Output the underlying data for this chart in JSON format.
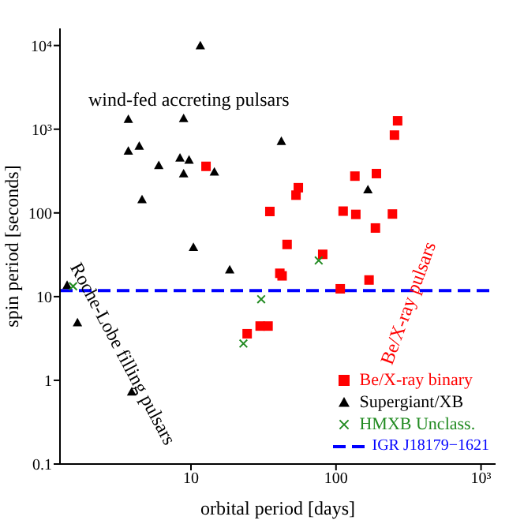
{
  "chart_data": {
    "type": "scatter",
    "xlabel": "orbital period [days]",
    "ylabel": "spin period [seconds]",
    "log": "xy",
    "xlim": [
      1.25,
      1260
    ],
    "ylim": [
      0.1,
      16000
    ],
    "xticks": [
      10,
      100,
      {
        "value": 1000,
        "label": "10³"
      }
    ],
    "yticks": [
      0.1,
      1,
      10,
      100,
      {
        "value": 1000,
        "label": "10³"
      },
      {
        "value": 10000,
        "label": "10⁴"
      }
    ],
    "grid": false,
    "legend": "bottom right",
    "series": [
      {
        "name": "Be/X-ray binary",
        "color": "#ff0000",
        "marker": "square",
        "x": [
          12.7,
          35,
          55,
          53,
          46,
          81,
          135,
          190,
          112,
          137,
          187,
          245,
          253,
          266,
          41,
          42.5,
          107,
          169,
          24.4,
          30,
          34
        ],
        "values": [
          360,
          104,
          200,
          163,
          42,
          32,
          275,
          295,
          105,
          96,
          66,
          97,
          850,
          1260,
          19,
          17.7,
          12.4,
          15.8,
          3.6,
          4.45,
          4.45
        ]
      },
      {
        "name": "Supergiant/XB",
        "color": "#000000",
        "marker": "triangle",
        "x": [
          11.6,
          3.7,
          8.9,
          3.7,
          4.4,
          6.0,
          8.4,
          9.7,
          8.9,
          14.5,
          4.6,
          42,
          166,
          10.4,
          1.4,
          1.65,
          3.9,
          18.5
        ],
        "values": [
          10000,
          1320,
          1350,
          550,
          630,
          370,
          455,
          430,
          295,
          310,
          145,
          720,
          190,
          39,
          13.7,
          4.9,
          0.73,
          21
        ]
      },
      {
        "name": "HMXB Unclass.",
        "color": "#228b22",
        "marker": "cross",
        "x": [
          1.54,
          76,
          30.5,
          23
        ],
        "values": [
          13.3,
          27,
          9.3,
          2.75
        ]
      }
    ],
    "ref_lines": [
      {
        "axis": "y",
        "value": 11.8,
        "label": "IGR J18179−1621",
        "color": "#0000ff",
        "line_style": "dashed"
      }
    ],
    "annotations": [
      "wind-fed accreting pulsars",
      "Roche-Lobe filling pulsars",
      "Be/X-ray pulsars"
    ]
  }
}
